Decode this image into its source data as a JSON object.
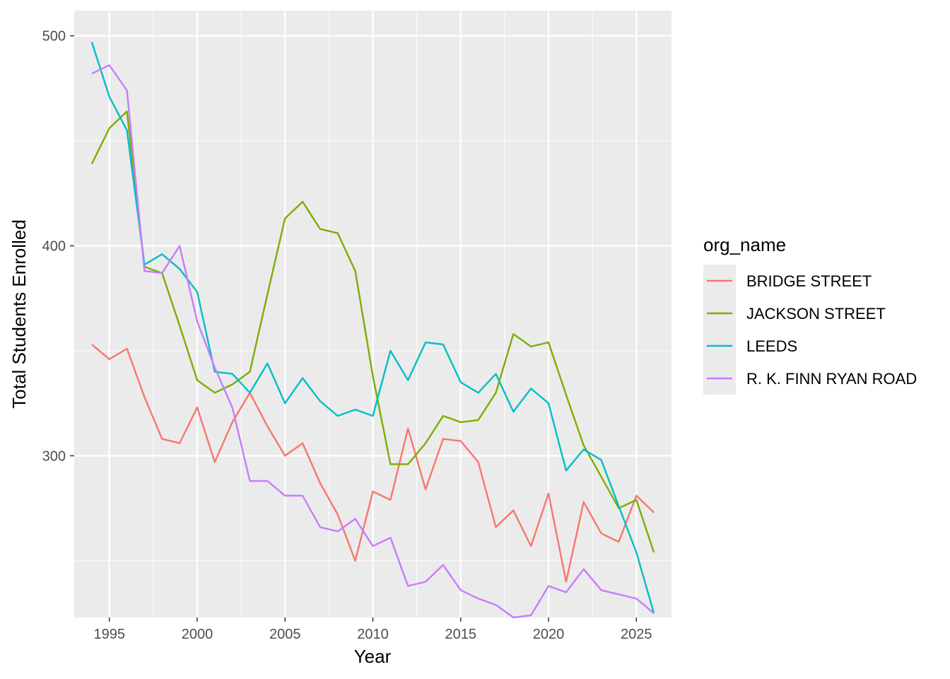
{
  "chart_data": {
    "type": "line",
    "title": "",
    "xlabel": "Year",
    "ylabel": "Total Students Enrolled",
    "xlim": [
      1993,
      2027
    ],
    "ylim": [
      223,
      512
    ],
    "x_ticks": [
      1995,
      2000,
      2005,
      2010,
      2015,
      2020,
      2025
    ],
    "x_tick_labels": [
      "1995",
      "2000",
      "2005",
      "2010",
      "2015",
      "2020",
      "2025"
    ],
    "y_ticks": [
      300,
      400,
      500
    ],
    "y_tick_labels": [
      "300",
      "400",
      "500"
    ],
    "grid": true,
    "legend": {
      "title": "org_name",
      "position": "right"
    },
    "x": [
      1994,
      1995,
      1996,
      1997,
      1998,
      1999,
      2000,
      2001,
      2002,
      2003,
      2004,
      2005,
      2006,
      2007,
      2008,
      2009,
      2010,
      2011,
      2012,
      2013,
      2014,
      2015,
      2016,
      2017,
      2018,
      2019,
      2020,
      2021,
      2022,
      2023,
      2024,
      2025,
      2026
    ],
    "series": [
      {
        "name": "BRIDGE STREET",
        "color": "#F8766D",
        "values": [
          353,
          346,
          351,
          328,
          308,
          306,
          323,
          297,
          316,
          330,
          314,
          300,
          306,
          287,
          272,
          250,
          283,
          279,
          313,
          284,
          308,
          307,
          297,
          266,
          274,
          257,
          282,
          240,
          278,
          263,
          259,
          281,
          273
        ]
      },
      {
        "name": "JACKSON STREET",
        "color": "#7CAE00",
        "values": [
          439,
          456,
          464,
          390,
          387,
          362,
          336,
          330,
          334,
          340,
          377,
          413,
          421,
          408,
          406,
          388,
          338,
          296,
          296,
          306,
          319,
          316,
          317,
          330,
          358,
          352,
          354,
          329,
          305,
          290,
          275,
          279,
          254
        ]
      },
      {
        "name": "LEEDS",
        "color": "#00BFC4",
        "values": [
          497,
          471,
          455,
          391,
          396,
          389,
          378,
          340,
          339,
          330,
          344,
          325,
          337,
          326,
          319,
          322,
          319,
          350,
          336,
          354,
          353,
          335,
          330,
          339,
          321,
          332,
          325,
          293,
          303,
          298,
          276,
          254,
          225
        ]
      },
      {
        "name": "R. K. FINN RYAN ROAD",
        "color": "#C77CFF",
        "values": [
          482,
          486,
          474,
          388,
          387,
          400,
          364,
          342,
          323,
          288,
          288,
          281,
          281,
          266,
          264,
          270,
          257,
          261,
          238,
          240,
          248,
          236,
          232,
          229,
          223,
          224,
          238,
          235,
          246,
          236,
          234,
          232,
          225
        ]
      }
    ]
  }
}
